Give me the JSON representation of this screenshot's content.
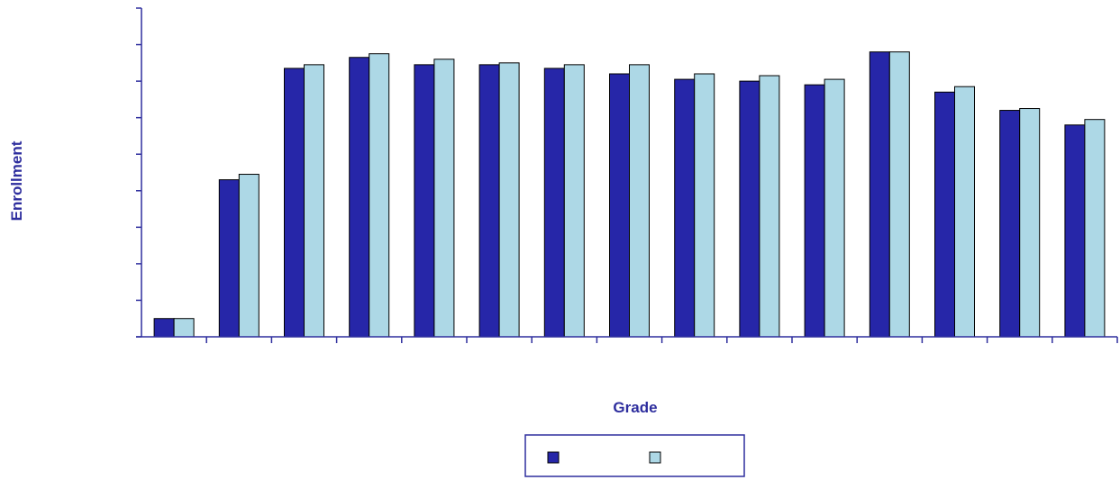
{
  "chart_data": {
    "type": "bar",
    "title": "",
    "xlabel": "Grade",
    "ylabel": "Enrollment",
    "categories": [
      "",
      "",
      "",
      "",
      "",
      "",
      "",
      "",
      "",
      "",
      "",
      "",
      "",
      "",
      ""
    ],
    "series": [
      {
        "values": [
          0.5,
          4.3,
          7.35,
          7.65,
          7.45,
          7.45,
          7.35,
          7.2,
          7.05,
          7.0,
          6.9,
          7.8,
          6.7,
          6.2,
          5.8
        ]
      },
      {
        "values": [
          0.5,
          4.45,
          7.45,
          7.75,
          7.6,
          7.5,
          7.45,
          7.45,
          7.2,
          7.15,
          7.05,
          7.8,
          6.85,
          6.25,
          5.95
        ]
      }
    ],
    "ylim": [
      0,
      9
    ],
    "grid": false,
    "legend": "bottom-center",
    "colors": {
      "series1": "#2626A8",
      "series2": "#ADD8E6",
      "axis": "#2E2E9E",
      "text": "#2E2E9E",
      "outline": "#000000"
    }
  }
}
